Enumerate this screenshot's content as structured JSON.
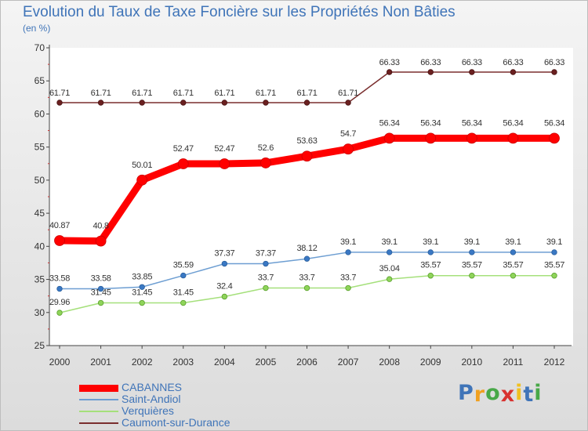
{
  "chart_data": {
    "type": "line",
    "title": "Evolution du Taux de Taxe Foncière sur les Propriétés Non Bâties",
    "subtitle": "(en %)",
    "xlabel": "",
    "ylabel": "",
    "categories": [
      "2000",
      "2001",
      "2002",
      "2003",
      "2004",
      "2005",
      "2006",
      "2007",
      "2008",
      "2009",
      "2010",
      "2011",
      "2012"
    ],
    "ylim": [
      25,
      70
    ],
    "yticks": [
      25,
      30,
      35,
      40,
      45,
      50,
      55,
      60,
      65,
      70
    ],
    "grid": false,
    "legend_position": "bottom-left",
    "series": [
      {
        "name": "CABANNES",
        "color": "#ff0000",
        "values": [
          40.87,
          40.8,
          50.01,
          52.47,
          52.47,
          52.6,
          53.63,
          54.7,
          56.34,
          56.34,
          56.34,
          56.34,
          56.34
        ],
        "labels": [
          "40.87",
          "40.8",
          "50.01",
          "52.47",
          "52.47",
          "52.6",
          "53.63",
          "54.7",
          "56.34",
          "56.34",
          "56.34",
          "56.34",
          "56.34"
        ]
      },
      {
        "name": "Saint-Andiol",
        "color": "#6d9ed2",
        "values": [
          33.58,
          33.58,
          33.85,
          35.59,
          37.37,
          37.37,
          38.12,
          39.1,
          39.1,
          39.1,
          39.1,
          39.1,
          39.1
        ],
        "labels": [
          "33.58",
          "33.58",
          "33.85",
          "35.59",
          "37.37",
          "37.37",
          "38.12",
          "39.1",
          "39.1",
          "39.1",
          "39.1",
          "39.1",
          "39.1"
        ]
      },
      {
        "name": "Verquières",
        "color": "#a5e07b",
        "values": [
          29.96,
          31.45,
          31.45,
          31.45,
          32.4,
          33.7,
          33.7,
          33.7,
          35.04,
          35.57,
          35.57,
          35.57,
          35.57
        ],
        "labels": [
          "29.96",
          "31.45",
          "31.45",
          "31.45",
          "32.4",
          "33.7",
          "33.7",
          "33.7",
          "35.04",
          "35.57",
          "35.57",
          "35.57",
          "35.57"
        ]
      },
      {
        "name": "Caumont-sur-Durance",
        "color": "#7a2e2e",
        "values": [
          61.71,
          61.71,
          61.71,
          61.71,
          61.71,
          61.71,
          61.71,
          61.71,
          66.33,
          66.33,
          66.33,
          66.33,
          66.33
        ],
        "labels": [
          "61.71",
          "61.71",
          "61.71",
          "61.71",
          "61.71",
          "61.71",
          "61.71",
          "61.71",
          "66.33",
          "66.33",
          "66.33",
          "66.33",
          "66.33"
        ]
      }
    ]
  },
  "legend": [
    {
      "label": "CABANNES",
      "color": "#ff0000"
    },
    {
      "label": "Saint-Andiol",
      "color": "#6d9ed2"
    },
    {
      "label": "Verquières",
      "color": "#a5e07b"
    },
    {
      "label": "Caumont-sur-Durance",
      "color": "#7a2e2e"
    }
  ],
  "logo": {
    "letters": [
      "P",
      "r",
      "o",
      "x",
      "i",
      "t",
      "i"
    ],
    "colors": [
      "#3f74b8",
      "#f0a020",
      "#48a848",
      "#d8322f",
      "#f0c020",
      "#3f74b8",
      "#48a848"
    ]
  }
}
